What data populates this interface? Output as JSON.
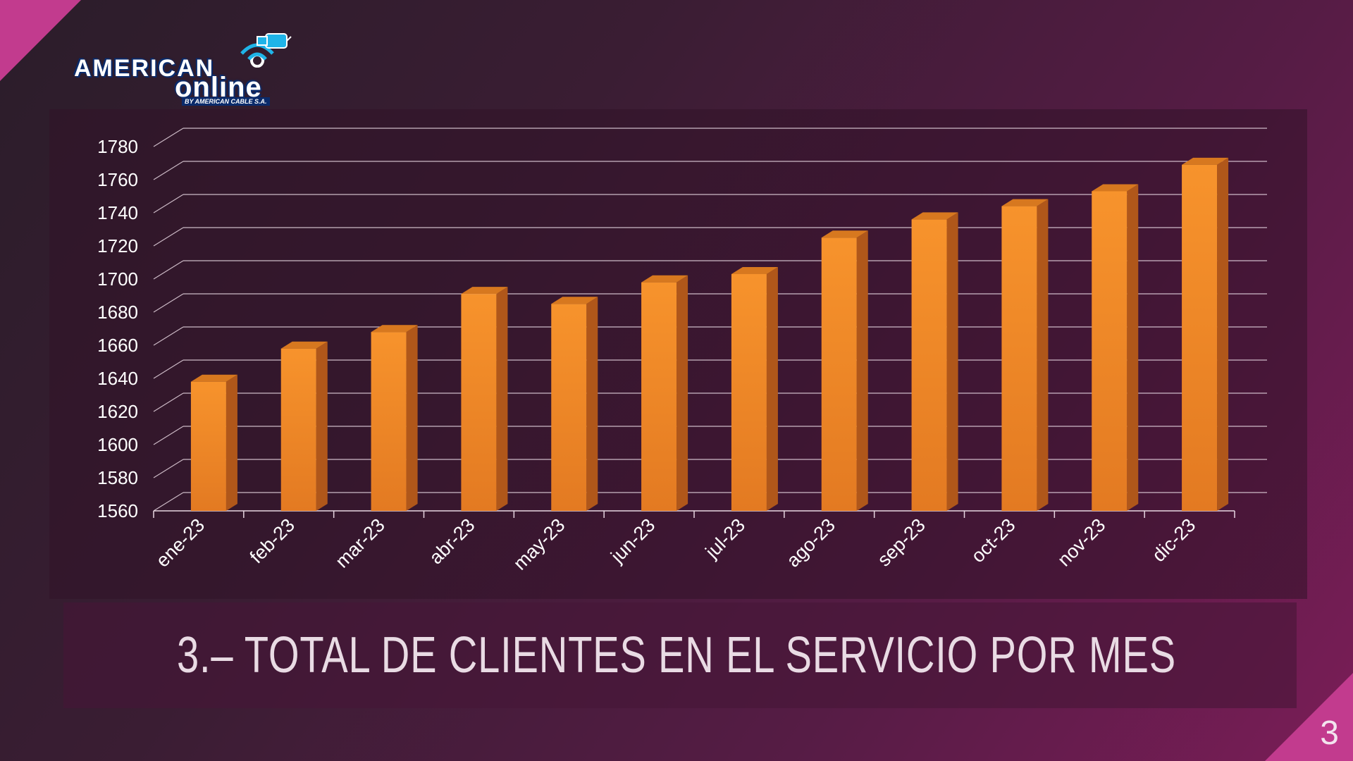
{
  "slide": {
    "title": "3.– TOTAL DE CLIENTES EN EL SERVICIO POR MES",
    "page_number": "3"
  },
  "logo": {
    "line1": "AMERICAN",
    "line2": "online",
    "tagline": "BY AMERICAN CABLE S.A."
  },
  "colors": {
    "bar_front": "#f7932c",
    "bar_side": "#b0571a",
    "bar_top": "#d7781f",
    "gridline": "#e8d7e2",
    "accent": "#c23b8e"
  },
  "chart_data": {
    "type": "bar",
    "categories": [
      "ene-23",
      "feb-23",
      "mar-23",
      "abr-23",
      "may-23",
      "jun-23",
      "jul-23",
      "ago-23",
      "sep-23",
      "oct-23",
      "nov-23",
      "dic-23"
    ],
    "values": [
      1638,
      1658,
      1668,
      1691,
      1685,
      1698,
      1703,
      1725,
      1736,
      1744,
      1753,
      1769
    ],
    "title": "",
    "xlabel": "",
    "ylabel": "",
    "ylim": [
      1560,
      1780
    ],
    "yticks": [
      1560,
      1580,
      1600,
      1620,
      1640,
      1660,
      1680,
      1700,
      1720,
      1740,
      1760,
      1780
    ],
    "grid": true,
    "legend": "none",
    "style": "3d-column"
  }
}
